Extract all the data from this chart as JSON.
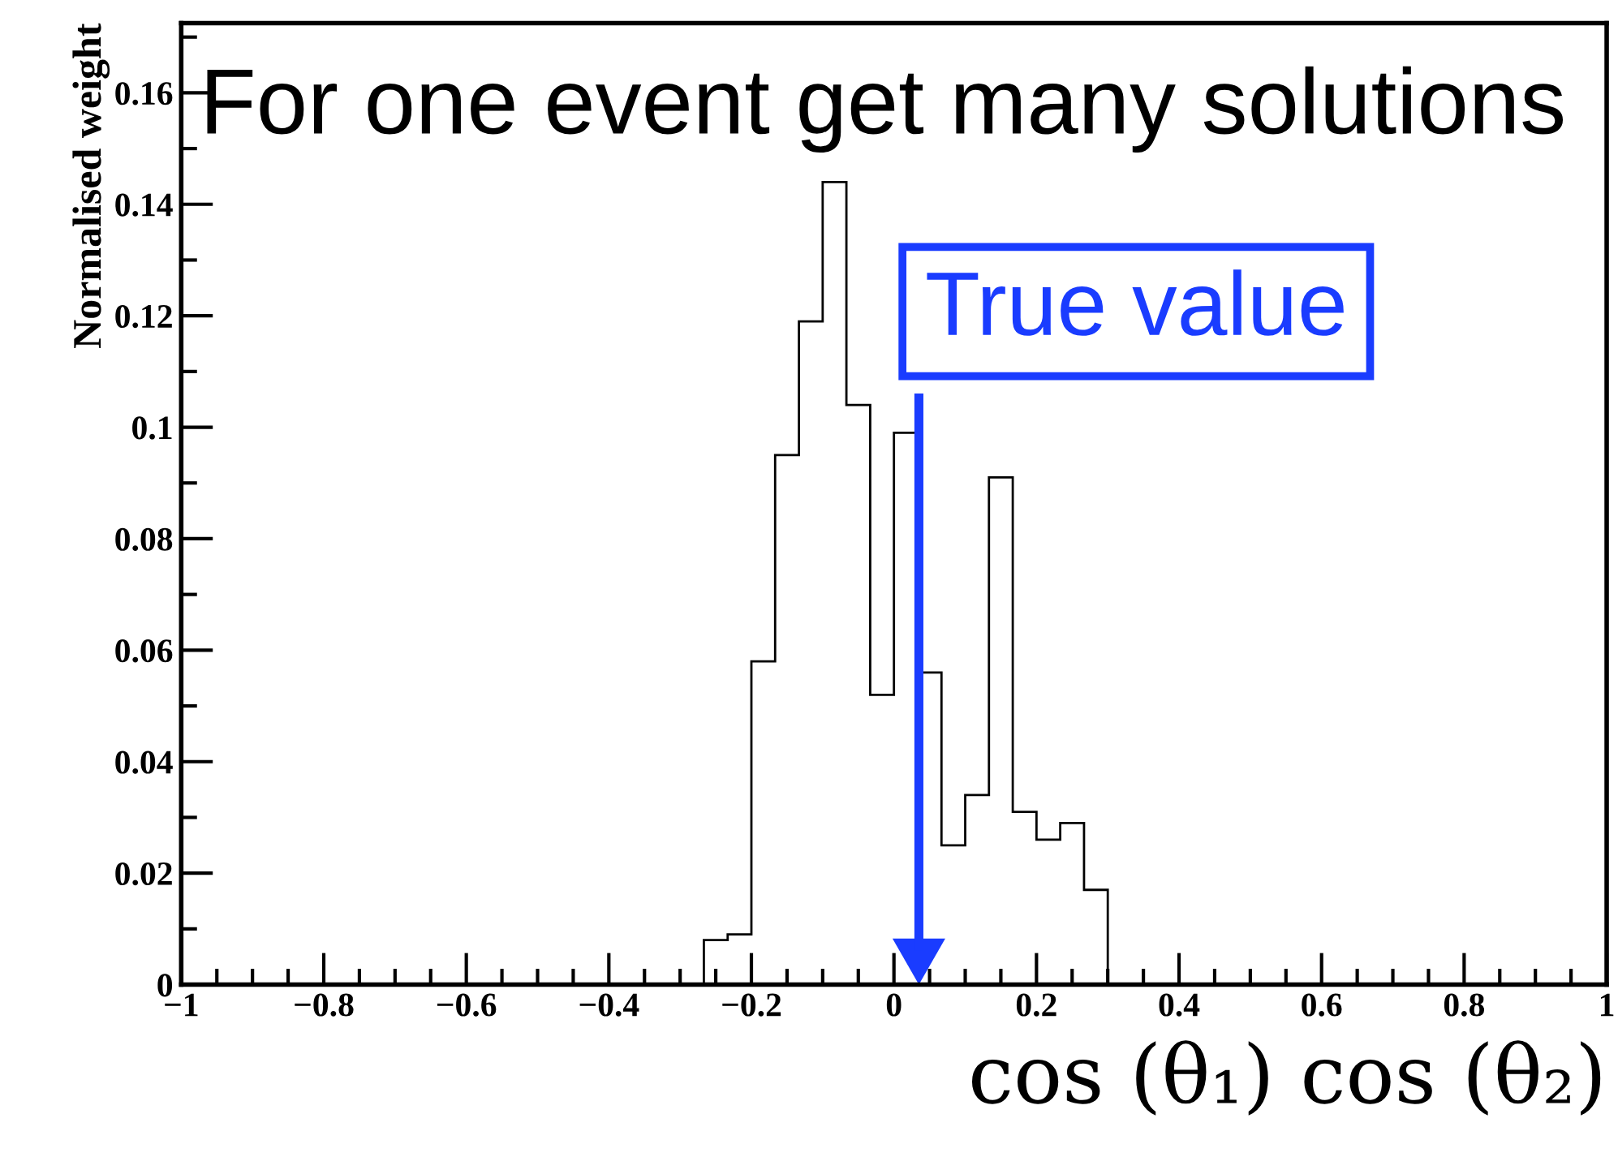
{
  "chart_data": {
    "type": "histogram",
    "xlabel": "cos (θ₁) cos (θ₂)",
    "ylabel": "Normalised weight",
    "bins": [
      -0.2667,
      -0.2333,
      -0.2,
      -0.1667,
      -0.1333,
      -0.1,
      -0.0667,
      -0.0333,
      0,
      0.0333,
      0.0667,
      0.1,
      0.1333,
      0.1667,
      0.2,
      0.2333,
      0.2667,
      0.3
    ],
    "values": [
      0.008,
      0.009,
      0.058,
      0.095,
      0.119,
      0.144,
      0.104,
      0.052,
      0.099,
      0.056,
      0.025,
      0.034,
      0.091,
      0.031,
      0.026,
      0.029,
      0.017
    ],
    "color": "#000000",
    "xlim": [
      -1,
      1
    ],
    "ylim": [
      0,
      0.1725
    ],
    "xticks": [
      {
        "value": -1,
        "label": "−1"
      },
      {
        "value": -0.8,
        "label": "−0.8"
      },
      {
        "value": -0.6,
        "label": "−0.6"
      },
      {
        "value": -0.4,
        "label": "−0.4"
      },
      {
        "value": -0.2,
        "label": "−0.2"
      },
      0,
      0.2,
      0.4,
      0.6,
      0.8,
      1
    ],
    "yticks": [
      0,
      0.02,
      0.04,
      0.06,
      0.08,
      0.1,
      0.12,
      0.14,
      0.16
    ],
    "annotations": [
      "For one event get many solutions"
    ],
    "ref_lines": [
      {
        "axis": "x",
        "value": 0.035,
        "label": "True value",
        "color": "#1a3cff",
        "line_style": "solid"
      }
    ],
    "grid": false,
    "legend": false
  }
}
